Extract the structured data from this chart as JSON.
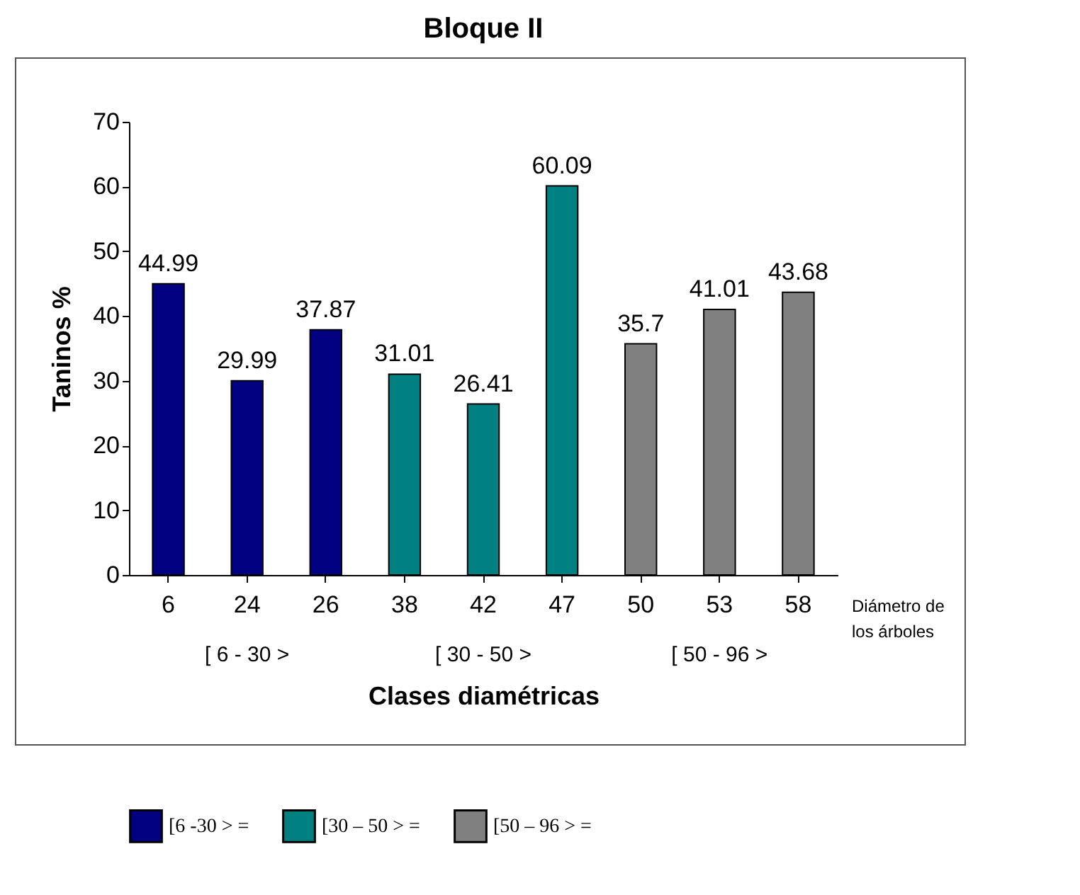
{
  "chart_data": {
    "type": "bar",
    "title": "Bloque II",
    "xlabel": "Clases diamétricas",
    "ylabel": "Taninos %",
    "categories": [
      "6",
      "24",
      "26",
      "38",
      "42",
      "47",
      "50",
      "53",
      "58"
    ],
    "series": [
      {
        "name": "[6 -30 > =",
        "color": "#000080",
        "values": [
          44.99,
          29.99,
          37.87,
          null,
          null,
          null,
          null,
          null,
          null
        ]
      },
      {
        "name": "[30 – 50 > =",
        "color": "#008080",
        "values": [
          null,
          null,
          null,
          31.01,
          26.41,
          60.09,
          null,
          null,
          null
        ]
      },
      {
        "name": "[50 – 96 > =",
        "color": "#808080",
        "values": [
          null,
          null,
          null,
          null,
          null,
          null,
          35.7,
          41.01,
          43.68
        ]
      }
    ],
    "ylim": [
      0,
      70
    ],
    "yticks": [
      0,
      10,
      20,
      30,
      40,
      50,
      60,
      70
    ],
    "grid": false,
    "data_labels": true,
    "legend": "bottom",
    "annotations": [
      "[ 6 - 30 >",
      "[ 30 - 50 >",
      "[ 50 - 96 >",
      "Diámetro de los árboles"
    ]
  }
}
